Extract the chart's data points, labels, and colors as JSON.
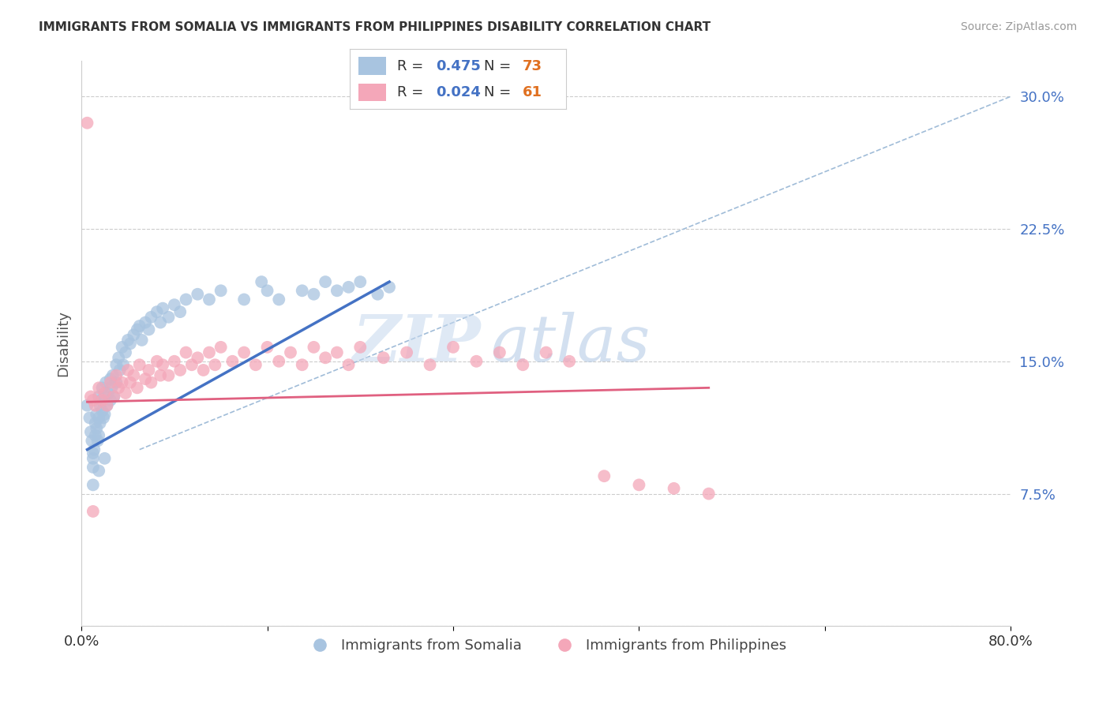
{
  "title": "IMMIGRANTS FROM SOMALIA VS IMMIGRANTS FROM PHILIPPINES DISABILITY CORRELATION CHART",
  "source": "Source: ZipAtlas.com",
  "ylabel": "Disability",
  "xlim": [
    0.0,
    0.8
  ],
  "ylim": [
    0.0,
    0.32
  ],
  "yticks": [
    0.075,
    0.15,
    0.225,
    0.3
  ],
  "ytick_labels": [
    "7.5%",
    "15.0%",
    "22.5%",
    "30.0%"
  ],
  "somalia_R": 0.475,
  "somalia_N": 73,
  "philippines_R": 0.024,
  "philippines_N": 61,
  "somalia_color": "#a8c4e0",
  "philippines_color": "#f4a7b9",
  "somalia_line_color": "#4472c4",
  "philippines_line_color": "#e06080",
  "dashed_line_color": "#a0bcd8",
  "background_color": "#ffffff",
  "watermark_zip": "ZIP",
  "watermark_atlas": "atlas",
  "somalia_x": [
    0.005,
    0.007,
    0.008,
    0.009,
    0.01,
    0.01,
    0.01,
    0.011,
    0.012,
    0.012,
    0.013,
    0.013,
    0.014,
    0.015,
    0.015,
    0.015,
    0.016,
    0.016,
    0.017,
    0.018,
    0.018,
    0.019,
    0.02,
    0.02,
    0.021,
    0.022,
    0.023,
    0.025,
    0.025,
    0.026,
    0.027,
    0.028,
    0.03,
    0.03,
    0.032,
    0.033,
    0.035,
    0.036,
    0.038,
    0.04,
    0.042,
    0.045,
    0.048,
    0.05,
    0.052,
    0.055,
    0.058,
    0.06,
    0.065,
    0.068,
    0.07,
    0.075,
    0.08,
    0.085,
    0.09,
    0.1,
    0.11,
    0.12,
    0.14,
    0.155,
    0.16,
    0.17,
    0.19,
    0.2,
    0.21,
    0.22,
    0.23,
    0.24,
    0.255,
    0.265,
    0.01,
    0.015,
    0.02
  ],
  "somalia_y": [
    0.125,
    0.118,
    0.11,
    0.105,
    0.098,
    0.095,
    0.09,
    0.1,
    0.115,
    0.108,
    0.12,
    0.112,
    0.105,
    0.13,
    0.118,
    0.108,
    0.125,
    0.115,
    0.128,
    0.122,
    0.135,
    0.118,
    0.13,
    0.12,
    0.138,
    0.125,
    0.132,
    0.14,
    0.128,
    0.135,
    0.142,
    0.13,
    0.148,
    0.138,
    0.152,
    0.145,
    0.158,
    0.148,
    0.155,
    0.162,
    0.16,
    0.165,
    0.168,
    0.17,
    0.162,
    0.172,
    0.168,
    0.175,
    0.178,
    0.172,
    0.18,
    0.175,
    0.182,
    0.178,
    0.185,
    0.188,
    0.185,
    0.19,
    0.185,
    0.195,
    0.19,
    0.185,
    0.19,
    0.188,
    0.195,
    0.19,
    0.192,
    0.195,
    0.188,
    0.192,
    0.08,
    0.088,
    0.095
  ],
  "philippines_x": [
    0.005,
    0.008,
    0.01,
    0.012,
    0.015,
    0.018,
    0.02,
    0.022,
    0.025,
    0.028,
    0.03,
    0.032,
    0.035,
    0.038,
    0.04,
    0.042,
    0.045,
    0.048,
    0.05,
    0.055,
    0.058,
    0.06,
    0.065,
    0.068,
    0.07,
    0.075,
    0.08,
    0.085,
    0.09,
    0.095,
    0.1,
    0.105,
    0.11,
    0.115,
    0.12,
    0.13,
    0.14,
    0.15,
    0.16,
    0.17,
    0.18,
    0.19,
    0.2,
    0.21,
    0.22,
    0.23,
    0.24,
    0.26,
    0.28,
    0.3,
    0.32,
    0.34,
    0.36,
    0.38,
    0.4,
    0.42,
    0.45,
    0.48,
    0.51,
    0.54,
    0.01
  ],
  "philippines_y": [
    0.285,
    0.13,
    0.128,
    0.125,
    0.135,
    0.128,
    0.132,
    0.125,
    0.138,
    0.13,
    0.142,
    0.135,
    0.138,
    0.132,
    0.145,
    0.138,
    0.142,
    0.135,
    0.148,
    0.14,
    0.145,
    0.138,
    0.15,
    0.142,
    0.148,
    0.142,
    0.15,
    0.145,
    0.155,
    0.148,
    0.152,
    0.145,
    0.155,
    0.148,
    0.158,
    0.15,
    0.155,
    0.148,
    0.158,
    0.15,
    0.155,
    0.148,
    0.158,
    0.152,
    0.155,
    0.148,
    0.158,
    0.152,
    0.155,
    0.148,
    0.158,
    0.15,
    0.155,
    0.148,
    0.155,
    0.15,
    0.085,
    0.08,
    0.078,
    0.075,
    0.065
  ],
  "somalia_line_x": [
    0.005,
    0.265
  ],
  "somalia_line_y": [
    0.1,
    0.195
  ],
  "philippines_line_x": [
    0.005,
    0.54
  ],
  "philippines_line_y": [
    0.127,
    0.135
  ],
  "diag_line_x": [
    0.05,
    0.8
  ],
  "diag_line_y": [
    0.1,
    0.3
  ]
}
